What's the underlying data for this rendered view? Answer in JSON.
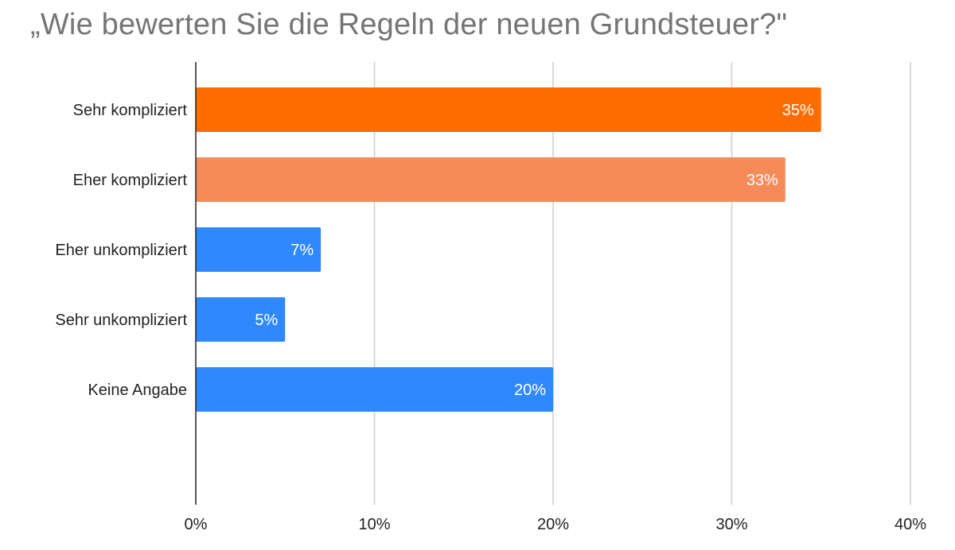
{
  "chart_data": {
    "type": "bar",
    "orientation": "horizontal",
    "title": "„Wie bewerten Sie die Regeln der neuen Grundsteuer?\"",
    "xlabel": "",
    "ylabel": "",
    "categories": [
      "Sehr kompliziert",
      "Eher kompliziert",
      "Eher unkompliziert",
      "Sehr unkompliziert",
      "Keine Angabe"
    ],
    "values": [
      35,
      33,
      7,
      5,
      20
    ],
    "value_labels": [
      "35%",
      "33%",
      "7%",
      "5%",
      "20%"
    ],
    "bar_colors": [
      "#ff6d00",
      "#f68b5a",
      "#2f89fc",
      "#2f89fc",
      "#2f89fc"
    ],
    "xlim": [
      0,
      40
    ],
    "xticks": [
      0,
      10,
      20,
      30,
      40
    ],
    "xtick_labels": [
      "0%",
      "10%",
      "20%",
      "30%",
      "40%"
    ],
    "grid": "vertical",
    "legend": "none"
  }
}
